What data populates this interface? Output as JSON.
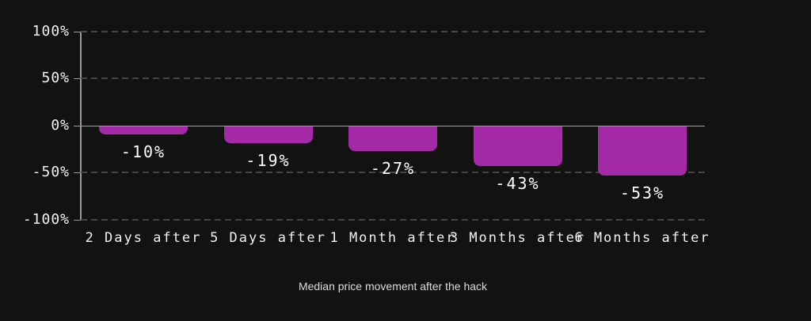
{
  "chart_data": {
    "type": "bar",
    "title": "",
    "caption": "Median price movement after the hack",
    "categories": [
      "2 Days after",
      "5 Days after",
      "1 Month after",
      "3 Months after",
      "6 Months after"
    ],
    "values": [
      -10,
      -19,
      -27,
      -43,
      -53
    ],
    "data_labels": [
      "-10%",
      "-19%",
      "-27%",
      "-43%",
      "-53%"
    ],
    "xlabel": "",
    "ylabel": "",
    "ylim": [
      -100,
      100
    ],
    "y_ticks": [
      {
        "value": 100,
        "label": "100%"
      },
      {
        "value": 50,
        "label": "50%"
      },
      {
        "value": 0,
        "label": "0%"
      },
      {
        "value": -50,
        "label": "-50%"
      },
      {
        "value": -100,
        "label": "-100%"
      }
    ],
    "grid": "horizontal-dashed",
    "legend": "none",
    "colors": {
      "background": "#121212",
      "bar": "#a42aa8",
      "axis": "#9a9aa0",
      "gridline": "#454545",
      "tick_label": "#f2f2f2",
      "data_label": "#ffffff",
      "caption": "#dcdcdc"
    }
  }
}
